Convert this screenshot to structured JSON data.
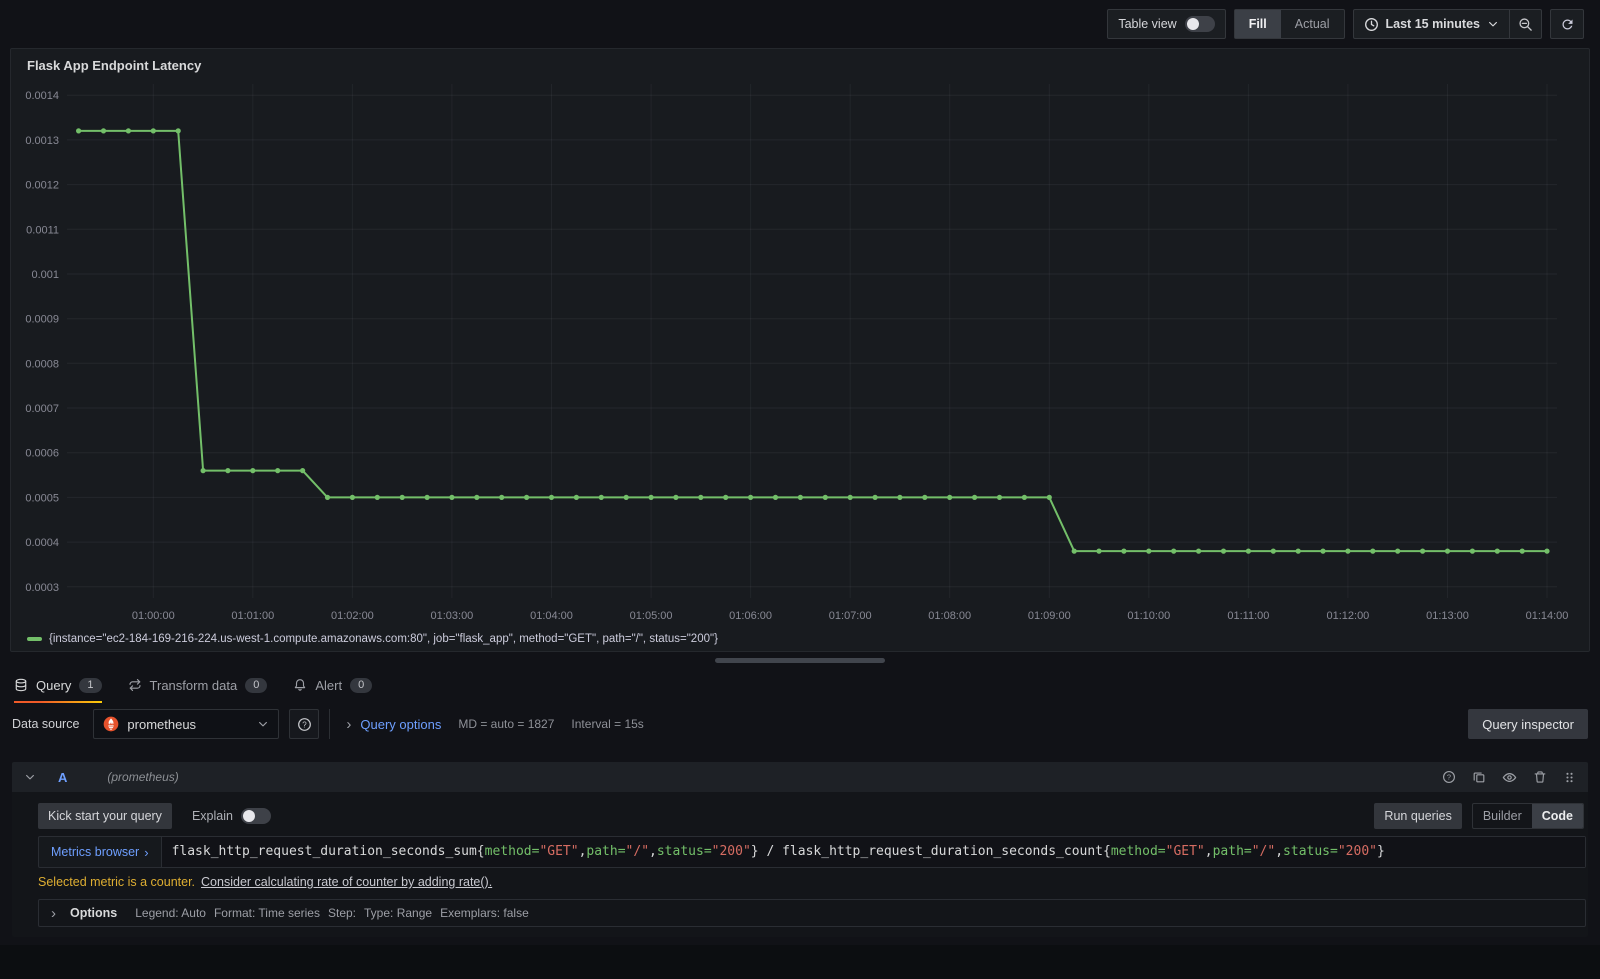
{
  "toolbar": {
    "table_view": "Table view",
    "fill": "Fill",
    "actual": "Actual",
    "time_range": "Last 15 minutes"
  },
  "panel": {
    "title": "Flask App Endpoint Latency",
    "legend_label": "{instance=\"ec2-184-169-216-224.us-west-1.compute.amazonaws.com:80\", job=\"flask_app\", method=\"GET\", path=\"/\", status=\"200\"}"
  },
  "chart_data": {
    "type": "line",
    "title": "Flask App Endpoint Latency",
    "xlabel": "",
    "ylabel": "",
    "grid": true,
    "legend_position": "bottom",
    "x_range_seconds": [
      -52,
      846
    ],
    "y_range": [
      0.000275,
      0.001425
    ],
    "x_tick_seconds": [
      0,
      60,
      120,
      180,
      240,
      300,
      360,
      420,
      480,
      540,
      600,
      660,
      720,
      780,
      840
    ],
    "x_tick_labels": [
      "01:00:00",
      "01:01:00",
      "01:02:00",
      "01:03:00",
      "01:04:00",
      "01:05:00",
      "01:06:00",
      "01:07:00",
      "01:08:00",
      "01:09:00",
      "01:10:00",
      "01:11:00",
      "01:12:00",
      "01:13:00",
      "01:14:00"
    ],
    "y_ticks": [
      0.0014,
      0.0013,
      0.0012,
      0.0011,
      0.001,
      0.0009,
      0.0008,
      0.0007,
      0.0006,
      0.0005,
      0.0004,
      0.0003
    ],
    "y_tick_labels": [
      "0.0014",
      "0.0013",
      "0.0012",
      "0.0011",
      "0.001",
      "0.0009",
      "0.0008",
      "0.0007",
      "0.0006",
      "0.0005",
      "0.0004",
      "0.0003"
    ],
    "series": [
      {
        "name": "{instance=\"ec2-184-169-216-224.us-west-1.compute.amazonaws.com:80\", job=\"flask_app\", method=\"GET\", path=\"/\", status=\"200\"}",
        "color": "#73bf69",
        "t_seconds": [
          -45,
          -30,
          -15,
          0,
          15,
          30,
          45,
          60,
          75,
          90,
          105,
          120,
          135,
          150,
          165,
          180,
          195,
          210,
          225,
          240,
          255,
          270,
          285,
          300,
          315,
          330,
          345,
          360,
          375,
          390,
          405,
          420,
          435,
          450,
          465,
          480,
          495,
          510,
          525,
          540,
          555,
          570,
          585,
          600,
          615,
          630,
          645,
          660,
          675,
          690,
          705,
          720,
          735,
          750,
          765,
          780,
          795,
          810,
          825,
          840
        ],
        "values": [
          0.00132,
          0.00132,
          0.00132,
          0.00132,
          0.00132,
          0.00056,
          0.00056,
          0.00056,
          0.00056,
          0.00056,
          0.0005,
          0.0005,
          0.0005,
          0.0005,
          0.0005,
          0.0005,
          0.0005,
          0.0005,
          0.0005,
          0.0005,
          0.0005,
          0.0005,
          0.0005,
          0.0005,
          0.0005,
          0.0005,
          0.0005,
          0.0005,
          0.0005,
          0.0005,
          0.0005,
          0.0005,
          0.0005,
          0.0005,
          0.0005,
          0.0005,
          0.0005,
          0.0005,
          0.0005,
          0.0005,
          0.00038,
          0.00038,
          0.00038,
          0.00038,
          0.00038,
          0.00038,
          0.00038,
          0.00038,
          0.00038,
          0.00038,
          0.00038,
          0.00038,
          0.00038,
          0.00038,
          0.00038,
          0.00038,
          0.00038,
          0.00038,
          0.00038,
          0.00038
        ]
      }
    ]
  },
  "tabs": [
    {
      "label": "Query",
      "count": "1"
    },
    {
      "label": "Transform data",
      "count": "0"
    },
    {
      "label": "Alert",
      "count": "0"
    }
  ],
  "datasource": {
    "label": "Data source",
    "name": "prometheus",
    "query_options_label": "Query options",
    "md_info": "MD = auto = 1827",
    "interval_info": "Interval = 15s",
    "query_inspector": "Query inspector"
  },
  "query": {
    "ref_id": "A",
    "datasource_hint": "(prometheus)",
    "kick_start": "Kick start your query",
    "explain": "Explain",
    "run_queries": "Run queries",
    "builder": "Builder",
    "code": "Code",
    "metrics_browser": "Metrics browser",
    "expression_parts": [
      {
        "t": "flask_http_request_duration_seconds_sum{",
        "c": "plain"
      },
      {
        "t": "method=",
        "c": "label"
      },
      {
        "t": "\"GET\"",
        "c": "str"
      },
      {
        "t": ",",
        "c": "plain"
      },
      {
        "t": "path=",
        "c": "label"
      },
      {
        "t": "\"/\"",
        "c": "str"
      },
      {
        "t": ",",
        "c": "plain"
      },
      {
        "t": "status=",
        "c": "label"
      },
      {
        "t": "\"200\"",
        "c": "str"
      },
      {
        "t": "} / flask_http_request_duration_seconds_count{",
        "c": "plain"
      },
      {
        "t": "method=",
        "c": "label"
      },
      {
        "t": "\"GET\"",
        "c": "str"
      },
      {
        "t": ",",
        "c": "plain"
      },
      {
        "t": "path=",
        "c": "label"
      },
      {
        "t": "\"/\"",
        "c": "str"
      },
      {
        "t": ",",
        "c": "plain"
      },
      {
        "t": "status=",
        "c": "label"
      },
      {
        "t": "\"200\"",
        "c": "str"
      },
      {
        "t": "}",
        "c": "plain"
      }
    ],
    "warning": "Selected metric is a counter.",
    "warning_link": "Consider calculating rate of counter by adding rate().",
    "options_label": "Options",
    "options_summary": [
      "Legend: Auto",
      "Format: Time series",
      "Step:",
      "Type: Range",
      "Exemplars: false"
    ]
  },
  "icons": {
    "chevron_right": "›"
  },
  "colors": {
    "series_green": "#73bf69",
    "link_blue": "#6e9fff",
    "tab_accent_start": "#f05a28",
    "tab_accent_end": "#fbca0a",
    "warning_yellow": "#deae32",
    "prometheus_orange": "#e6522c",
    "code_label_green": "#73bf69",
    "code_string_red": "#d66c62"
  }
}
